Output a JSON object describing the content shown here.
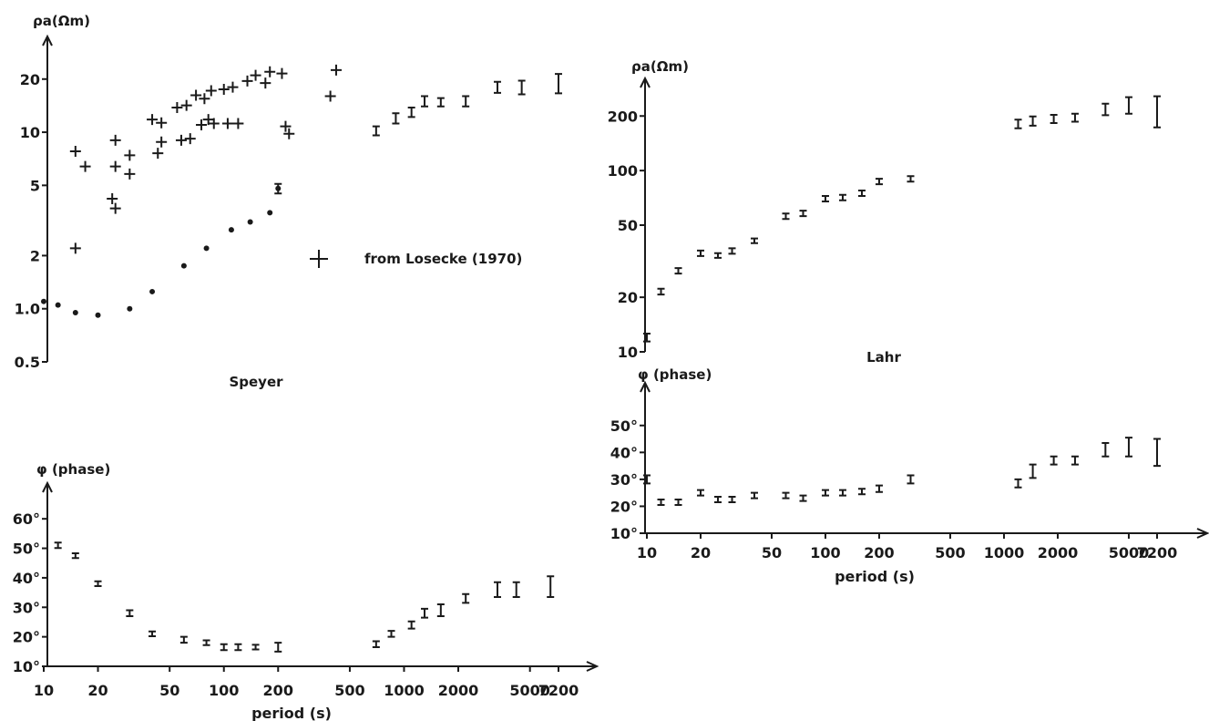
{
  "chart_data": [
    {
      "id": "speyer_rho",
      "type": "scatter",
      "title": "Speyer",
      "ylabel": "ρa(Ωm)",
      "yscale": "log",
      "xscale": "log",
      "ylim": [
        0.5,
        25
      ],
      "xlim": [
        10,
        7200
      ],
      "yticks": [
        {
          "v": 0.5,
          "label": "0.5"
        },
        {
          "v": 1.0,
          "label": "1.0"
        },
        {
          "v": 2,
          "label": "2"
        },
        {
          "v": 5,
          "label": "5"
        },
        {
          "v": 10,
          "label": "10"
        },
        {
          "v": 20,
          "label": "20"
        }
      ],
      "legend": {
        "symbol": "+",
        "label": "from Losecke (1970)"
      },
      "series": [
        {
          "marker": "dot",
          "points": [
            [
              10,
              1.1
            ],
            [
              12,
              1.05
            ],
            [
              15,
              0.95
            ],
            [
              20,
              0.92
            ],
            [
              30,
              1.0
            ],
            [
              40,
              1.25
            ],
            [
              60,
              1.75
            ],
            [
              80,
              2.2
            ],
            [
              110,
              2.8
            ],
            [
              140,
              3.1
            ],
            [
              180,
              3.5
            ],
            [
              200,
              4.8
            ]
          ]
        },
        {
          "marker": "plus",
          "points": [
            [
              15,
              2.2
            ],
            [
              15,
              7.8
            ],
            [
              17,
              6.4
            ],
            [
              24,
              4.2
            ],
            [
              25,
              3.7
            ],
            [
              25,
              6.4
            ],
            [
              25,
              9.0
            ],
            [
              30,
              5.8
            ],
            [
              30,
              7.4
            ],
            [
              40,
              11.8
            ],
            [
              43,
              7.6
            ],
            [
              45,
              8.8
            ],
            [
              45,
              11.3
            ],
            [
              55,
              13.8
            ],
            [
              58,
              9.0
            ],
            [
              62,
              14.2
            ],
            [
              65,
              9.2
            ],
            [
              70,
              16.2
            ],
            [
              75,
              11.0
            ],
            [
              78,
              15.5
            ],
            [
              82,
              11.8
            ],
            [
              85,
              17.2
            ],
            [
              88,
              11.2
            ],
            [
              100,
              17.5
            ],
            [
              105,
              11.2
            ],
            [
              112,
              18.0
            ],
            [
              120,
              11.2
            ],
            [
              135,
              19.5
            ],
            [
              150,
              21.0
            ],
            [
              170,
              19.0
            ],
            [
              180,
              22.0
            ],
            [
              210,
              21.5
            ],
            [
              220,
              10.8
            ],
            [
              230,
              9.8
            ],
            [
              390,
              16.0
            ],
            [
              420,
              22.5
            ]
          ]
        },
        {
          "marker": "errorbar",
          "points": [
            [
              200,
              4.8,
              0.3
            ],
            [
              700,
              10.2,
              0.6
            ],
            [
              900,
              12.0,
              0.8
            ],
            [
              1100,
              13.0,
              0.8
            ],
            [
              1300,
              15.0,
              1.0
            ],
            [
              1600,
              14.8,
              0.8
            ],
            [
              2200,
              15.0,
              1.0
            ],
            [
              3300,
              18.0,
              1.3
            ],
            [
              4500,
              18.0,
              1.6
            ],
            [
              7200,
              19.0,
              2.4
            ]
          ]
        }
      ]
    },
    {
      "id": "speyer_phase",
      "type": "scatter",
      "ylabel": "φ (phase)",
      "xlabel": "period (s)",
      "xscale": "log",
      "xlim": [
        10,
        7200
      ],
      "ylim": [
        10,
        65
      ],
      "yticks": [
        {
          "v": 10,
          "label": "10°"
        },
        {
          "v": 20,
          "label": "20°"
        },
        {
          "v": 30,
          "label": "30°"
        },
        {
          "v": 40,
          "label": "40°"
        },
        {
          "v": 50,
          "label": "50°"
        },
        {
          "v": 60,
          "label": "60°"
        }
      ],
      "xticks": [
        {
          "v": 10,
          "label": "10"
        },
        {
          "v": 20,
          "label": "20"
        },
        {
          "v": 50,
          "label": "50"
        },
        {
          "v": 100,
          "label": "100"
        },
        {
          "v": 200,
          "label": "200"
        },
        {
          "v": 500,
          "label": "500"
        },
        {
          "v": 1000,
          "label": "1000"
        },
        {
          "v": 2000,
          "label": "2000"
        },
        {
          "v": 5000,
          "label": "5000"
        },
        {
          "v": 7200,
          "label": "7200"
        }
      ],
      "series": [
        {
          "marker": "errorbar",
          "points": [
            [
              12,
              51,
              0.6
            ],
            [
              15,
              47.5,
              0.8
            ],
            [
              20,
              38,
              0.8
            ],
            [
              30,
              28,
              1.0
            ],
            [
              40,
              21,
              0.8
            ],
            [
              60,
              19,
              1.0
            ],
            [
              80,
              18,
              0.8
            ],
            [
              100,
              16.5,
              1.0
            ],
            [
              120,
              16.5,
              1.0
            ],
            [
              150,
              16.5,
              0.8
            ],
            [
              200,
              16.5,
              1.5
            ],
            [
              700,
              17.5,
              1.0
            ],
            [
              850,
              21,
              1.0
            ],
            [
              1100,
              24,
              1.2
            ],
            [
              1300,
              28,
              1.5
            ],
            [
              1600,
              29,
              2.0
            ],
            [
              2200,
              33,
              1.5
            ],
            [
              3300,
              36,
              2.5
            ],
            [
              4200,
              36,
              2.5
            ],
            [
              6500,
              37,
              3.5
            ]
          ]
        }
      ]
    },
    {
      "id": "lahr_rho",
      "type": "scatter",
      "title": "Lahr",
      "ylabel": "ρa(Ωm)",
      "yscale": "log",
      "xscale": "log",
      "xlim": [
        10,
        7200
      ],
      "ylim": [
        10,
        250
      ],
      "yticks": [
        {
          "v": 10,
          "label": "10"
        },
        {
          "v": 20,
          "label": "20"
        },
        {
          "v": 50,
          "label": "50"
        },
        {
          "v": 100,
          "label": "100"
        },
        {
          "v": 200,
          "label": "200"
        }
      ],
      "series": [
        {
          "marker": "errorbar",
          "points": [
            [
              10,
              12,
              0.6
            ],
            [
              12,
              21.5,
              0.8
            ],
            [
              15,
              28,
              0.6
            ],
            [
              20,
              35,
              1.2
            ],
            [
              25,
              34,
              1.0
            ],
            [
              30,
              36,
              1.0
            ],
            [
              40,
              41,
              1.2
            ],
            [
              60,
              56,
              1.6
            ],
            [
              75,
              58,
              1.6
            ],
            [
              100,
              70,
              2.0
            ],
            [
              125,
              71,
              2.0
            ],
            [
              160,
              75,
              2.0
            ],
            [
              200,
              87,
              2.5
            ],
            [
              300,
              90,
              2.5
            ],
            [
              1200,
              181,
              10
            ],
            [
              1450,
              188,
              11
            ],
            [
              1900,
              193,
              10
            ],
            [
              2500,
              196,
              10
            ],
            [
              3700,
              218,
              16
            ],
            [
              5000,
              230,
              24
            ],
            [
              7200,
              215,
              42
            ]
          ]
        }
      ]
    },
    {
      "id": "lahr_phase",
      "type": "scatter",
      "ylabel": "φ (phase)",
      "xlabel": "period (s)",
      "xscale": "log",
      "xlim": [
        10,
        7200
      ],
      "ylim": [
        10,
        55
      ],
      "yticks": [
        {
          "v": 10,
          "label": "10°"
        },
        {
          "v": 20,
          "label": "20°"
        },
        {
          "v": 30,
          "label": "30°"
        },
        {
          "v": 40,
          "label": "40°"
        },
        {
          "v": 50,
          "label": "50°"
        }
      ],
      "xticks": [
        {
          "v": 10,
          "label": "10"
        },
        {
          "v": 20,
          "label": "20"
        },
        {
          "v": 50,
          "label": "50"
        },
        {
          "v": 100,
          "label": "100"
        },
        {
          "v": 200,
          "label": "200"
        },
        {
          "v": 500,
          "label": "500"
        },
        {
          "v": 1000,
          "label": "1000"
        },
        {
          "v": 2000,
          "label": "2000"
        },
        {
          "v": 5000,
          "label": "5000"
        },
        {
          "v": 7200,
          "label": "7200"
        }
      ],
      "series": [
        {
          "marker": "errorbar",
          "points": [
            [
              10,
              30,
              1.5
            ],
            [
              12,
              21.5,
              0.6
            ],
            [
              15,
              21.5,
              0.6
            ],
            [
              20,
              25,
              0.6
            ],
            [
              25,
              22.5,
              0.6
            ],
            [
              30,
              22.5,
              0.6
            ],
            [
              40,
              24,
              0.6
            ],
            [
              60,
              24,
              0.6
            ],
            [
              75,
              23,
              0.6
            ],
            [
              100,
              25,
              0.8
            ],
            [
              125,
              25,
              0.8
            ],
            [
              160,
              25.5,
              0.8
            ],
            [
              200,
              26.5,
              1.2
            ],
            [
              300,
              30,
              1.5
            ],
            [
              1200,
              28.5,
              1.5
            ],
            [
              1450,
              33,
              2.5
            ],
            [
              1900,
              37,
              1.5
            ],
            [
              2500,
              37,
              1.5
            ],
            [
              3700,
              41,
              2.5
            ],
            [
              5000,
              42,
              3.5
            ],
            [
              7200,
              40,
              5
            ]
          ]
        }
      ]
    }
  ]
}
